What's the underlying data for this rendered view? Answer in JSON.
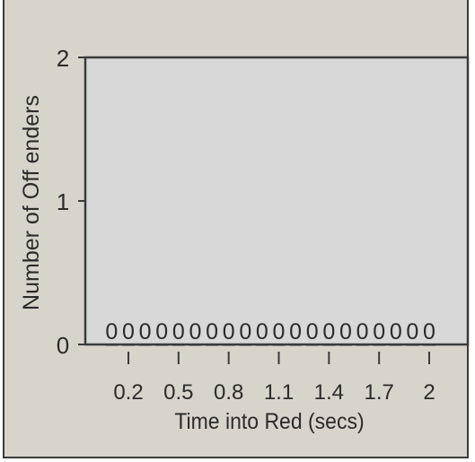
{
  "chart_data": {
    "type": "bar",
    "xlabel": "Time into Red (secs)",
    "ylabel": "Number of  Off enders",
    "ylim": [
      0,
      2
    ],
    "yticks": [
      0,
      1,
      2
    ],
    "xticks": [
      "0.2",
      "0.5",
      "0.8",
      "1.1",
      "1.4",
      "1.7",
      "2"
    ],
    "x": [
      0.1,
      0.2,
      0.3,
      0.4,
      0.5,
      0.6,
      0.7,
      0.8,
      0.9,
      1.0,
      1.1,
      1.2,
      1.3,
      1.4,
      1.5,
      1.6,
      1.7,
      1.8,
      1.9,
      2.0
    ],
    "values": [
      0,
      0,
      0,
      0,
      0,
      0,
      0,
      0,
      0,
      0,
      0,
      0,
      0,
      0,
      0,
      0,
      0,
      0,
      0,
      0
    ],
    "grid": false,
    "colors": {
      "panel": "#d8d8d8",
      "background": "#d8d4cc",
      "axis": "#3a3a3a"
    }
  }
}
